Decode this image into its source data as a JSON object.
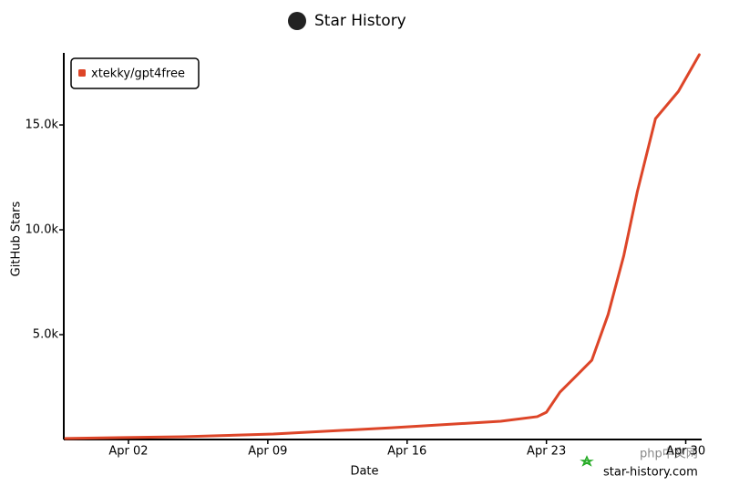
{
  "chart_data": {
    "type": "line",
    "title": "Star History",
    "xlabel": "Date",
    "ylabel": "GitHub Stars",
    "x": [
      -1.16,
      4.7,
      9.27,
      15.22,
      20.7,
      22.54,
      23.0,
      23.68,
      24.37,
      25.28,
      26.1,
      26.89,
      27.57,
      28.48,
      29.63,
      30.68
    ],
    "series": [
      {
        "name": "xtekky/gpt4free",
        "color": "#dd4528",
        "values": [
          50,
          130,
          260,
          560,
          870,
          1090,
          1300,
          2260,
          2910,
          3780,
          5960,
          8780,
          11830,
          15300,
          16600,
          18350
        ]
      }
    ],
    "xlim": [
      -1.25,
      30.8
    ],
    "xticks": [
      {
        "value": 2,
        "label": "Apr 02"
      },
      {
        "value": 9,
        "label": "Apr 09"
      },
      {
        "value": 16,
        "label": "Apr 16"
      },
      {
        "value": 23,
        "label": "Apr 23"
      },
      {
        "value": 30,
        "label": "Apr 30"
      }
    ],
    "ylim": [
      0,
      18350
    ],
    "yticks": [
      {
        "value": 5000,
        "label": "5.0k"
      },
      {
        "value": 10000,
        "label": "10.0k"
      },
      {
        "value": 15000,
        "label": "15.0k"
      }
    ],
    "legend": "upper left",
    "annotations": [
      "star-history.com",
      "php中文网"
    ]
  }
}
